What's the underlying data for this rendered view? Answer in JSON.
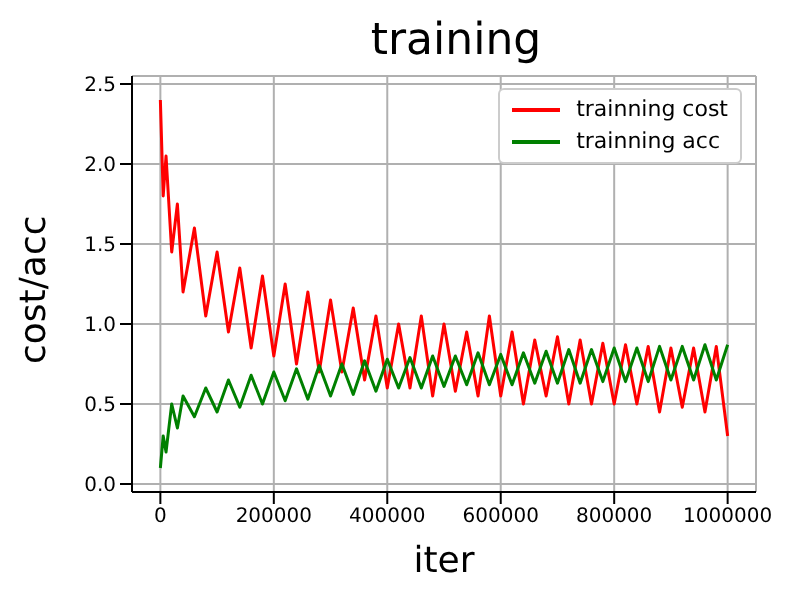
{
  "chart_data": {
    "type": "line",
    "title": "training",
    "xlabel": "iter",
    "ylabel": "cost/acc",
    "x": [
      0,
      5000,
      10000,
      20000,
      30000,
      40000,
      60000,
      80000,
      100000,
      120000,
      140000,
      160000,
      180000,
      200000,
      220000,
      240000,
      260000,
      280000,
      300000,
      320000,
      340000,
      360000,
      380000,
      400000,
      420000,
      440000,
      460000,
      480000,
      500000,
      520000,
      540000,
      560000,
      580000,
      600000,
      620000,
      640000,
      660000,
      680000,
      700000,
      720000,
      740000,
      760000,
      780000,
      800000,
      820000,
      840000,
      860000,
      880000,
      900000,
      920000,
      940000,
      960000,
      980000,
      1000000
    ],
    "series": [
      {
        "name": "trainning cost",
        "color": "#ff0000",
        "values": [
          2.4,
          1.8,
          2.05,
          1.45,
          1.75,
          1.2,
          1.6,
          1.05,
          1.45,
          0.95,
          1.35,
          0.85,
          1.3,
          0.8,
          1.25,
          0.75,
          1.2,
          0.7,
          1.15,
          0.7,
          1.1,
          0.65,
          1.05,
          0.6,
          1.0,
          0.6,
          1.05,
          0.55,
          1.0,
          0.58,
          0.95,
          0.55,
          1.05,
          0.55,
          0.95,
          0.5,
          0.9,
          0.55,
          0.92,
          0.5,
          0.9,
          0.5,
          0.88,
          0.5,
          0.87,
          0.5,
          0.86,
          0.45,
          0.85,
          0.48,
          0.85,
          0.45,
          0.86,
          0.3
        ]
      },
      {
        "name": "trainning acc",
        "color": "#008000",
        "values": [
          0.1,
          0.3,
          0.2,
          0.5,
          0.35,
          0.55,
          0.42,
          0.6,
          0.45,
          0.65,
          0.48,
          0.68,
          0.5,
          0.7,
          0.52,
          0.72,
          0.53,
          0.74,
          0.55,
          0.75,
          0.56,
          0.77,
          0.58,
          0.78,
          0.6,
          0.79,
          0.6,
          0.8,
          0.61,
          0.8,
          0.62,
          0.82,
          0.62,
          0.81,
          0.62,
          0.82,
          0.63,
          0.83,
          0.63,
          0.84,
          0.63,
          0.84,
          0.64,
          0.85,
          0.64,
          0.85,
          0.64,
          0.86,
          0.65,
          0.86,
          0.65,
          0.87,
          0.65,
          0.87
        ]
      }
    ],
    "xlim": [
      -50000,
      1050000
    ],
    "xticks": [
      0,
      200000,
      400000,
      600000,
      800000,
      1000000
    ],
    "ylim": [
      -0.05,
      2.55
    ],
    "yticks": [
      {
        "value": 0,
        "label": "0.0"
      },
      0.5,
      {
        "value": 1,
        "label": "1.0"
      },
      1.5,
      {
        "value": 2,
        "label": "2.0"
      },
      2.5
    ],
    "grid": true,
    "legend": "top right"
  }
}
